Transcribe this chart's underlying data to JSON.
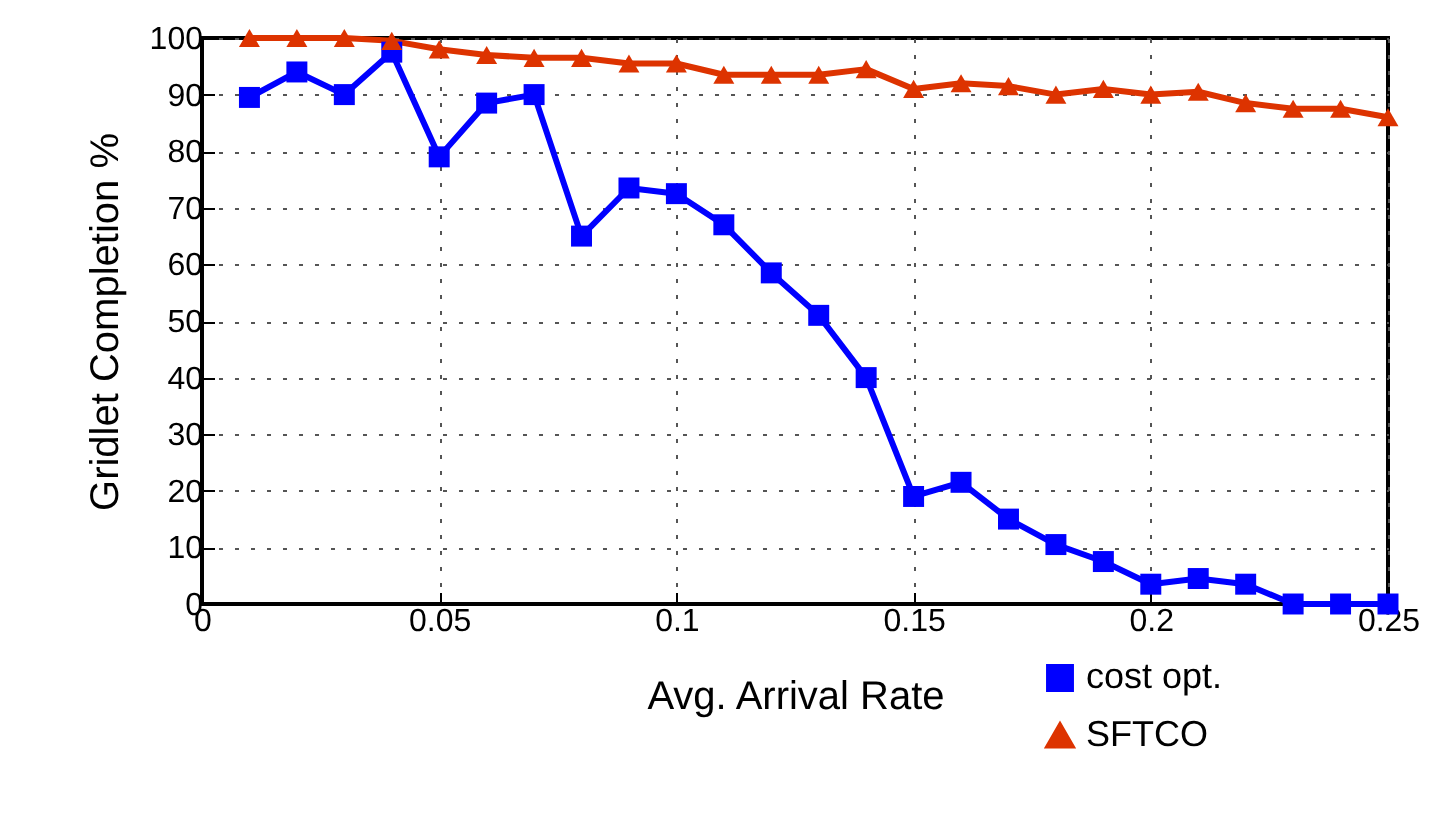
{
  "chart_data": {
    "type": "line",
    "xlabel": "Avg. Arrival Rate",
    "ylabel": "Gridlet Completion %",
    "x": [
      0.01,
      0.02,
      0.03,
      0.04,
      0.05,
      0.06,
      0.07,
      0.08,
      0.09,
      0.1,
      0.11,
      0.12,
      0.13,
      0.14,
      0.15,
      0.16,
      0.17,
      0.18,
      0.19,
      0.2,
      0.21,
      0.22,
      0.23,
      0.24,
      0.25
    ],
    "series": [
      {
        "name": "cost opt.",
        "color": "#0000ff",
        "marker": "square",
        "values": [
          89.5,
          94,
          90,
          97.5,
          79,
          88.5,
          90,
          65,
          73.5,
          72.5,
          67,
          58.5,
          51,
          40,
          19,
          21.5,
          15,
          10.5,
          7.5,
          3.5,
          4.5,
          3.5,
          0,
          0,
          0
        ]
      },
      {
        "name": "SFTCO",
        "color": "#dd3300",
        "marker": "triangle",
        "values": [
          100,
          100,
          100,
          99.5,
          98,
          97,
          96.5,
          96.5,
          95.5,
          95.5,
          93.5,
          93.5,
          93.5,
          94.5,
          91,
          92,
          91.5,
          90,
          91,
          90,
          90.5,
          88.5,
          87.5,
          87.5,
          86
        ]
      }
    ],
    "xlim": [
      0,
      0.25
    ],
    "xticks": [
      0,
      0.05,
      0.1,
      0.15,
      0.2,
      0.25
    ],
    "ylim": [
      0,
      100
    ],
    "yticks": [
      0,
      10,
      20,
      30,
      40,
      50,
      60,
      70,
      80,
      90,
      100
    ],
    "grid": true,
    "legend": "bottom right",
    "line_style": "solid"
  }
}
